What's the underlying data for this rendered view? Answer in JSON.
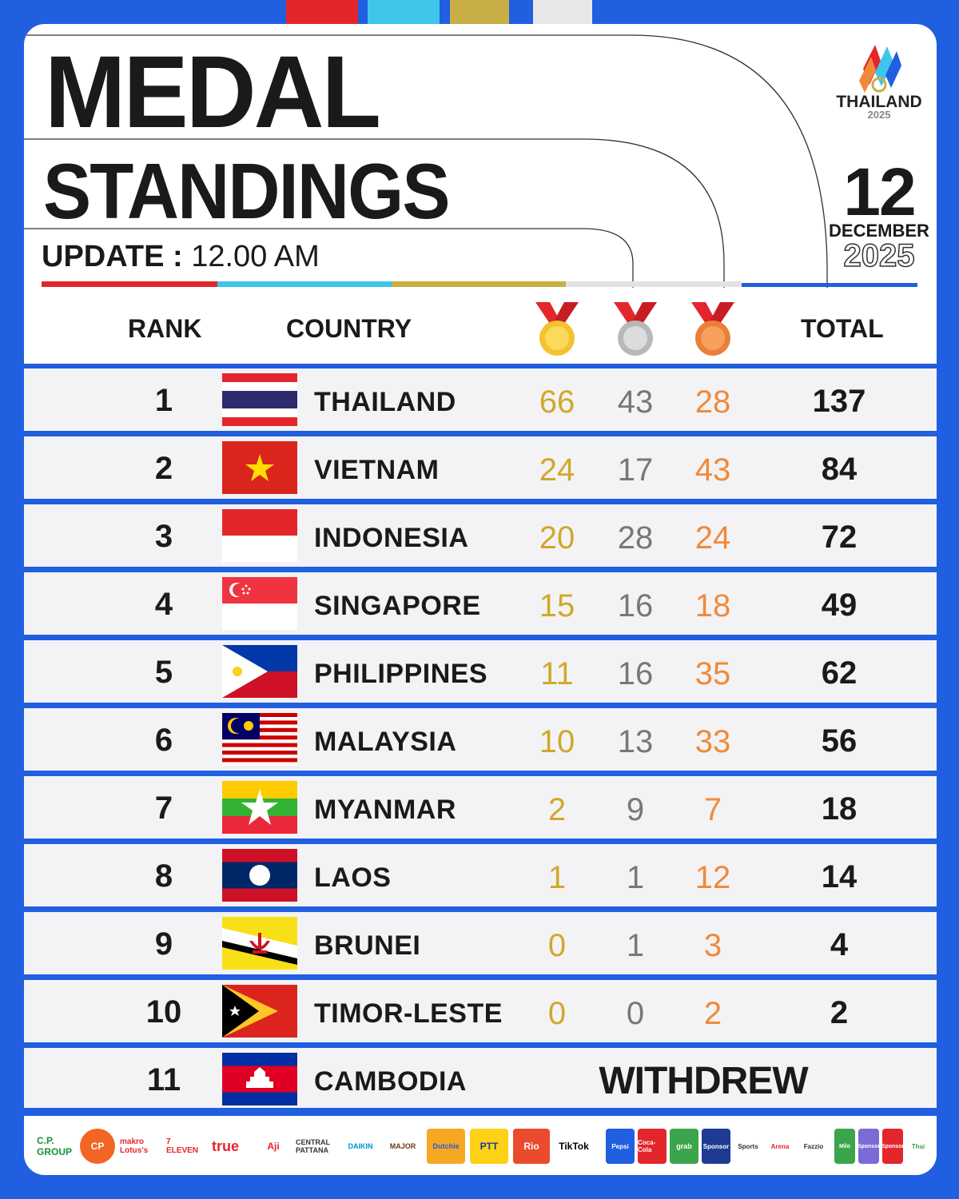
{
  "header": {
    "title_line1": "MEDAL",
    "title_line2": "STANDINGS",
    "update_label": "UPDATE :",
    "update_time": "12.00 AM"
  },
  "brand": {
    "logo_text": "THAILAND",
    "logo_year": "2025",
    "date_day": "12",
    "date_month": "DECEMBER",
    "date_year": "2025"
  },
  "columns": {
    "rank": "RANK",
    "country": "COUNTRY",
    "total": "TOTAL",
    "gold_icon": "gold-medal-icon",
    "silver_icon": "silver-medal-icon",
    "bronze_icon": "bronze-medal-icon"
  },
  "colors": {
    "blue": "#1f5fe0",
    "gold": "#d0a82a",
    "silver": "#777777",
    "bronze": "#f08a3a",
    "red": "#e3262b",
    "cyan": "#3ec6ea",
    "ochre": "#c9ae45"
  },
  "rows": [
    {
      "rank": "1",
      "country": "THAILAND",
      "gold": "66",
      "silver": "43",
      "bronze": "28",
      "total": "137"
    },
    {
      "rank": "2",
      "country": "VIETNAM",
      "gold": "24",
      "silver": "17",
      "bronze": "43",
      "total": "84"
    },
    {
      "rank": "3",
      "country": "INDONESIA",
      "gold": "20",
      "silver": "28",
      "bronze": "24",
      "total": "72"
    },
    {
      "rank": "4",
      "country": "SINGAPORE",
      "gold": "15",
      "silver": "16",
      "bronze": "18",
      "total": "49"
    },
    {
      "rank": "5",
      "country": "PHILIPPINES",
      "gold": "11",
      "silver": "16",
      "bronze": "35",
      "total": "62"
    },
    {
      "rank": "6",
      "country": "MALAYSIA",
      "gold": "10",
      "silver": "13",
      "bronze": "33",
      "total": "56"
    },
    {
      "rank": "7",
      "country": "MYANMAR",
      "gold": "2",
      "silver": "9",
      "bronze": "7",
      "total": "18"
    },
    {
      "rank": "8",
      "country": "LAOS",
      "gold": "1",
      "silver": "1",
      "bronze": "12",
      "total": "14"
    },
    {
      "rank": "9",
      "country": "BRUNEI",
      "gold": "0",
      "silver": "1",
      "bronze": "3",
      "total": "4"
    },
    {
      "rank": "10",
      "country": "TIMOR-LESTE",
      "gold": "0",
      "silver": "0",
      "bronze": "2",
      "total": "2"
    },
    {
      "rank": "11",
      "country": "CAMBODIA",
      "status": "WITHDREW"
    }
  ],
  "sponsors": [
    "C.P. GROUP",
    "CP",
    "makro Lotus's",
    "7 ELEVEN",
    "true",
    "Aji",
    "CENTRAL PATTANA",
    "DAIKIN",
    "MAJOR",
    "Dutchie",
    "PTT",
    "Rio",
    "TikTok",
    "Pepsi",
    "Coca-Cola",
    "grab",
    "Sponsor",
    "Sports",
    "Arena",
    "Fazzio",
    "Milo",
    "Sponsor",
    "Sponsor",
    "Thai"
  ]
}
